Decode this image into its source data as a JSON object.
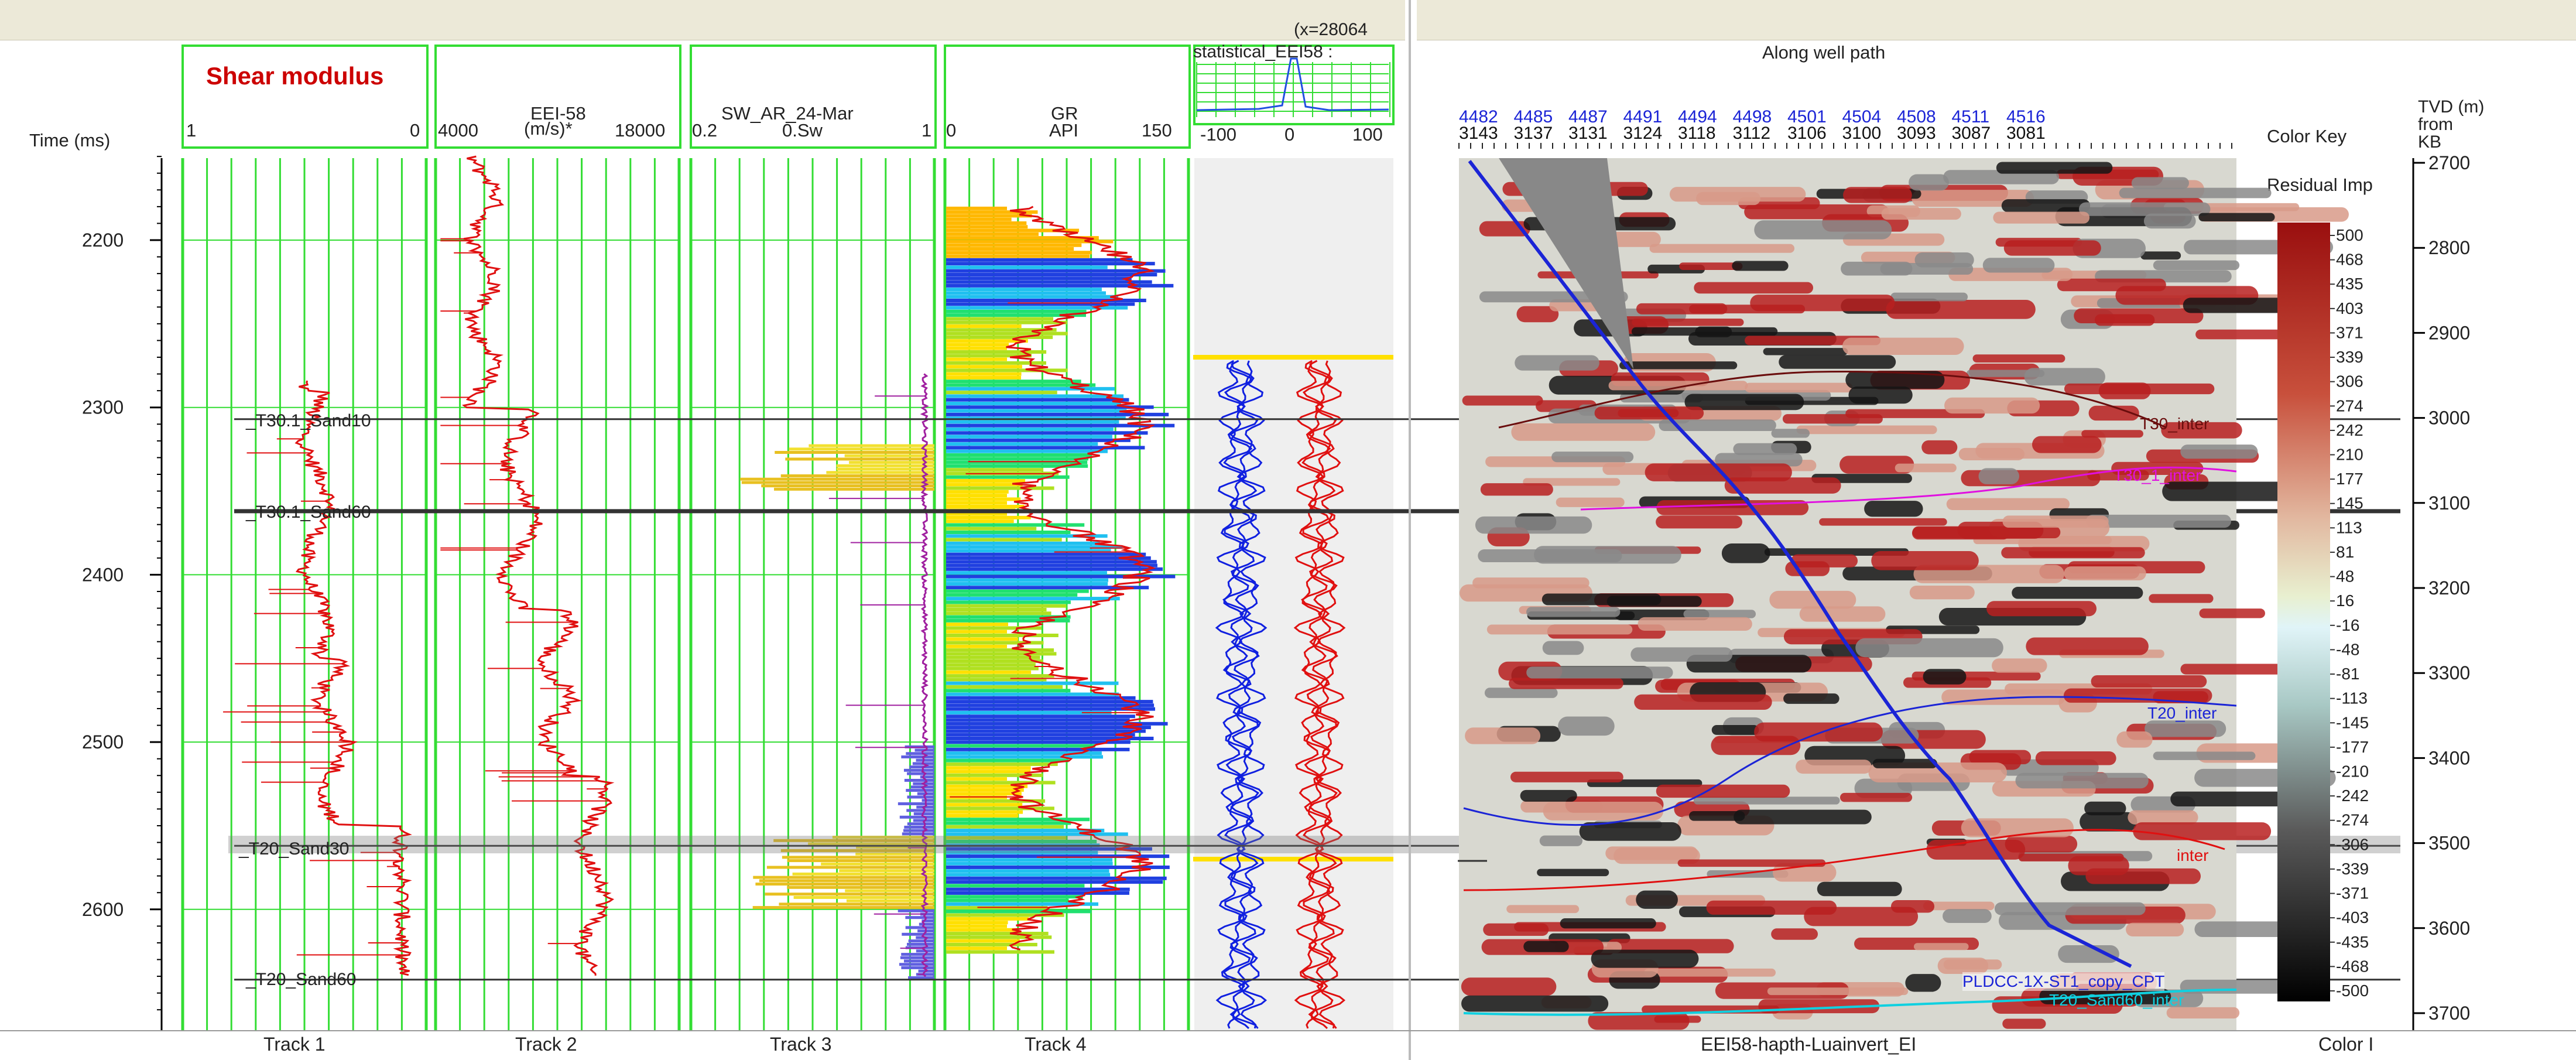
{
  "coord_readout": "(x=28064",
  "panel_header": "Along well path",
  "time_axis": {
    "label": "Time (ms)",
    "ticks": [
      "2200",
      "2300",
      "2400",
      "2500",
      "2600"
    ]
  },
  "tracks": [
    {
      "name": "Track 1",
      "curve": "Shear modulus",
      "unit": "",
      "min": "1",
      "max": "0"
    },
    {
      "name": "Track 2",
      "curve": "EEI-58",
      "unit": "(m/s)*",
      "min": "4000",
      "max": "18000"
    },
    {
      "name": "Track 3",
      "curve": "SW_AR_24-Mar",
      "unit": "0.Sw",
      "min": "0.2",
      "max": "1"
    },
    {
      "name": "Track 4",
      "curve": "GR",
      "unit": "API",
      "min": "0",
      "max": "150"
    }
  ],
  "synthetic_track": {
    "title": "statistical_EEI58 :",
    "ticks": [
      "-100",
      "0",
      "100"
    ]
  },
  "well_tops": [
    "_T30.1_Sand10",
    "_T30.1_Sand60",
    "_T20_Sand30",
    "_T20_Sand60"
  ],
  "trace_numbers_top": [
    "4482",
    "4485",
    "4487",
    "4491",
    "4494",
    "4498",
    "4501",
    "4504",
    "4508",
    "4511",
    "4516"
  ],
  "trace_numbers_bottom": [
    "3143",
    "3137",
    "3131",
    "3124",
    "3118",
    "3112",
    "3106",
    "3100",
    "3093",
    "3087",
    "3081"
  ],
  "color_key": {
    "title": "Color Key",
    "subtitle": "Residual Imp",
    "values": [
      "500",
      "468",
      "435",
      "403",
      "371",
      "339",
      "306",
      "274",
      "242",
      "210",
      "177",
      "145",
      "113",
      "81",
      "48",
      "16",
      "-16",
      "-48",
      "-81",
      "-113",
      "-145",
      "-177",
      "-210",
      "-242",
      "-274",
      "-306",
      "-339",
      "-371",
      "-403",
      "-435",
      "-468",
      "-500"
    ]
  },
  "tvd_axis": {
    "label": "TVD (m) from KB",
    "ticks": [
      "2700",
      "2800",
      "2900",
      "3000",
      "3100",
      "3200",
      "3300",
      "3400",
      "3500",
      "3600",
      "3700"
    ]
  },
  "seismic_horizons": [
    "T30_inter",
    "T30_1_inter",
    "T20_inter",
    "inter"
  ],
  "well_name": "PLDCC-1X-ST1_copy_CPT",
  "bottom_horizon": "T20_Sand60_inter",
  "footer": {
    "track_labels": [
      "Track 1",
      "Track 2",
      "Track 3",
      "Track 4"
    ],
    "seismic_label": "EEI58-hapth-Luainvert_EI",
    "colorkey_label": "Color I"
  },
  "colors": {
    "grid": "#33dd33",
    "log_curve": "#e01010",
    "wavelet_blue": "#1020e0",
    "wavelet_red": "#e01010",
    "header_title": "#cc0000"
  }
}
